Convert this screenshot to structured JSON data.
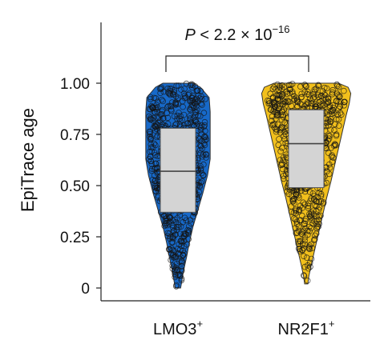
{
  "chart_data": {
    "type": "violin",
    "ylabel": "EpiTrace age",
    "ylim": [
      0,
      1
    ],
    "yticks": [
      {
        "value": 0,
        "label": "0"
      },
      {
        "value": 0.25,
        "label": "0.25"
      },
      {
        "value": 0.5,
        "label": "0.50"
      },
      {
        "value": 0.75,
        "label": "0.75"
      },
      {
        "value": 1.0,
        "label": "1.00"
      }
    ],
    "categories": [
      {
        "name": "LMO3",
        "superscript": "+",
        "color": "#1769c9",
        "box": {
          "q1": 0.37,
          "median": 0.57,
          "q3": 0.78
        },
        "range": [
          0.0,
          1.0
        ],
        "density": [
          [
            0.0,
            0.05
          ],
          [
            0.03,
            0.07
          ],
          [
            0.08,
            0.1
          ],
          [
            0.15,
            0.16
          ],
          [
            0.22,
            0.21
          ],
          [
            0.3,
            0.28
          ],
          [
            0.38,
            0.37
          ],
          [
            0.46,
            0.46
          ],
          [
            0.55,
            0.55
          ],
          [
            0.63,
            0.6
          ],
          [
            0.7,
            0.6
          ],
          [
            0.78,
            0.6
          ],
          [
            0.86,
            0.6
          ],
          [
            0.93,
            0.58
          ],
          [
            0.98,
            0.42
          ],
          [
            1.0,
            0.28
          ]
        ]
      },
      {
        "name": "NR2F1",
        "superscript": "+",
        "color": "#f2c01c",
        "box": {
          "q1": 0.49,
          "median": 0.705,
          "q3": 0.87
        },
        "range": [
          0.02,
          1.0
        ],
        "density": [
          [
            0.02,
            0.03
          ],
          [
            0.06,
            0.05
          ],
          [
            0.12,
            0.1
          ],
          [
            0.2,
            0.17
          ],
          [
            0.28,
            0.24
          ],
          [
            0.36,
            0.31
          ],
          [
            0.44,
            0.38
          ],
          [
            0.52,
            0.46
          ],
          [
            0.6,
            0.53
          ],
          [
            0.68,
            0.6
          ],
          [
            0.76,
            0.67
          ],
          [
            0.84,
            0.74
          ],
          [
            0.9,
            0.8
          ],
          [
            0.95,
            0.83
          ],
          [
            0.98,
            0.78
          ],
          [
            1.0,
            0.6
          ]
        ]
      }
    ],
    "annotation": {
      "prefix": "P",
      "text": " < 2.2 × 10",
      "exponent": "−16"
    }
  }
}
